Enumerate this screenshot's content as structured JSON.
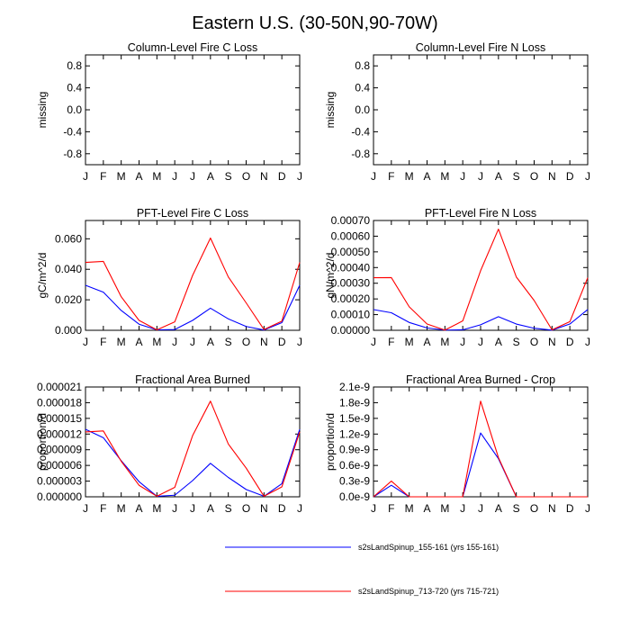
{
  "figure": {
    "title": "Eastern U.S. (30-50N,90-70W)",
    "legend": [
      {
        "name": "s2sLandSpinup_155-161 (yrs 155-161)",
        "color": "#0000ff"
      },
      {
        "name": "s2sLandSpinup_713-720 (yrs 715-721)",
        "color": "#ff0000"
      }
    ],
    "legend_placement": "bottom-center"
  },
  "chart_data": [
    {
      "type": "line",
      "title": "Column-Level Fire C Loss",
      "ylabel": "missing",
      "categories": [
        "J",
        "F",
        "M",
        "A",
        "M",
        "J",
        "J",
        "A",
        "S",
        "O",
        "N",
        "D",
        "J"
      ],
      "ylim": [
        -1.0,
        1.0
      ],
      "yticks": [
        "-0.8",
        "-0.4",
        "0.0",
        "0.4",
        "0.8"
      ],
      "ytick_values": [
        -0.8,
        -0.4,
        0.0,
        0.4,
        0.8
      ],
      "series": []
    },
    {
      "type": "line",
      "title": "Column-Level Fire N Loss",
      "ylabel": "missing",
      "categories": [
        "J",
        "F",
        "M",
        "A",
        "M",
        "J",
        "J",
        "A",
        "S",
        "O",
        "N",
        "D",
        "J"
      ],
      "ylim": [
        -1.0,
        1.0
      ],
      "yticks": [
        "-0.8",
        "-0.4",
        "0.0",
        "0.4",
        "0.8"
      ],
      "ytick_values": [
        -0.8,
        -0.4,
        0.0,
        0.4,
        0.8
      ],
      "series": []
    },
    {
      "type": "line",
      "title": "PFT-Level Fire C Loss",
      "ylabel": "gC/m^2/d",
      "categories": [
        "J",
        "F",
        "M",
        "A",
        "M",
        "J",
        "J",
        "A",
        "S",
        "O",
        "N",
        "D",
        "J"
      ],
      "ylim": [
        0,
        0.072
      ],
      "yticks": [
        "0.000",
        "0.020",
        "0.040",
        "0.060"
      ],
      "ytick_values": [
        0,
        0.02,
        0.04,
        0.06
      ],
      "series": [
        {
          "name": "s2sLandSpinup_155-161 (yrs 155-161)",
          "color": "#0000ff",
          "values": [
            0.0295,
            0.025,
            0.013,
            0.004,
            0.0003,
            0.0005,
            0.0065,
            0.0145,
            0.0075,
            0.0025,
            0.0002,
            0.005,
            0.0295
          ]
        },
        {
          "name": "s2sLandSpinup_713-720 (yrs 715-721)",
          "color": "#ff0000",
          "values": [
            0.0445,
            0.0452,
            0.022,
            0.0065,
            0.0003,
            0.0055,
            0.036,
            0.0605,
            0.035,
            0.018,
            0.0005,
            0.006,
            0.0445
          ]
        }
      ]
    },
    {
      "type": "line",
      "title": "PFT-Level Fire N Loss",
      "ylabel": "gN/m^2/d",
      "categories": [
        "J",
        "F",
        "M",
        "A",
        "M",
        "J",
        "J",
        "A",
        "S",
        "O",
        "N",
        "D",
        "J"
      ],
      "ylim": [
        0,
        0.0007
      ],
      "yticks": [
        "0.00000",
        "0.00010",
        "0.00020",
        "0.00030",
        "0.00040",
        "0.00050",
        "0.00060",
        "0.00070"
      ],
      "ytick_values": [
        0,
        0.0001,
        0.0002,
        0.0003,
        0.0004,
        0.0005,
        0.0006,
        0.0007
      ],
      "series": [
        {
          "name": "s2sLandSpinup_155-161 (yrs 155-161)",
          "color": "#0000ff",
          "values": [
            0.000132,
            0.000112,
            5e-05,
            1.5e-05,
            1.5e-06,
            3e-06,
            3.5e-05,
            8.7e-05,
            4e-05,
            1.3e-05,
            1e-06,
            4e-05,
            0.000132
          ]
        },
        {
          "name": "s2sLandSpinup_713-720 (yrs 715-721)",
          "color": "#ff0000",
          "values": [
            0.000335,
            0.000336,
            0.00015,
            4e-05,
            1.5e-06,
            6e-05,
            0.00038,
            0.000645,
            0.00034,
            0.00019,
            3e-06,
            5.5e-05,
            0.000335
          ]
        }
      ]
    },
    {
      "type": "line",
      "title": "Fractional Area Burned",
      "ylabel": "proportion/d",
      "categories": [
        "J",
        "F",
        "M",
        "A",
        "M",
        "J",
        "J",
        "A",
        "S",
        "O",
        "N",
        "D",
        "J"
      ],
      "ylim": [
        0,
        2.1e-05
      ],
      "yticks": [
        "0.000000",
        "0.000003",
        "0.000006",
        "0.000009",
        "0.000012",
        "0.000015",
        "0.000018",
        "0.000021"
      ],
      "ytick_values": [
        0,
        3e-06,
        6e-06,
        9e-06,
        1.2e-05,
        1.5e-05,
        1.8e-05,
        2.1e-05
      ],
      "series": [
        {
          "name": "s2sLandSpinup_155-161 (yrs 155-161)",
          "color": "#0000ff",
          "values": [
            1.29e-05,
            1.13e-05,
            6.9e-06,
            2.9e-06,
            1e-07,
            3e-07,
            3.1e-06,
            6.4e-06,
            3.7e-06,
            1.4e-06,
            1e-07,
            2.5e-06,
            1.29e-05
          ]
        },
        {
          "name": "s2sLandSpinup_713-720 (yrs 715-721)",
          "color": "#ff0000",
          "values": [
            1.24e-05,
            1.26e-05,
            6.8e-06,
            2.2e-06,
            1e-07,
            1.8e-06,
            1.17e-05,
            1.83e-05,
            1.01e-05,
            5.5e-06,
            1e-07,
            1.9e-06,
            1.24e-05
          ]
        }
      ]
    },
    {
      "type": "line",
      "title": "Fractional Area Burned - Crop",
      "ylabel": "proportion/d",
      "categories": [
        "J",
        "F",
        "M",
        "A",
        "M",
        "J",
        "J",
        "A",
        "S",
        "O",
        "N",
        "D",
        "J"
      ],
      "ylim": [
        0,
        2.1e-09
      ],
      "yticks": [
        "0.0e-9",
        "0.3e-9",
        "0.6e-9",
        "0.9e-9",
        "1.2e-9",
        "1.5e-9",
        "1.8e-9",
        "2.1e-9"
      ],
      "ytick_values": [
        0,
        3e-10,
        6e-10,
        9e-10,
        1.2e-09,
        1.5e-09,
        1.8e-09,
        2.1e-09
      ],
      "series": [
        {
          "name": "s2sLandSpinup_155-161 (yrs 155-161)",
          "color": "#0000ff",
          "values": [
            0,
            2.2e-10,
            0,
            0,
            0,
            0,
            1.22e-09,
            7.3e-10,
            0,
            0,
            0,
            0,
            0
          ]
        },
        {
          "name": "s2sLandSpinup_713-720 (yrs 715-721)",
          "color": "#ff0000",
          "values": [
            0,
            3e-10,
            0,
            0,
            0,
            0,
            1.83e-09,
            7.5e-10,
            0,
            0,
            0,
            0,
            0
          ]
        }
      ]
    }
  ]
}
